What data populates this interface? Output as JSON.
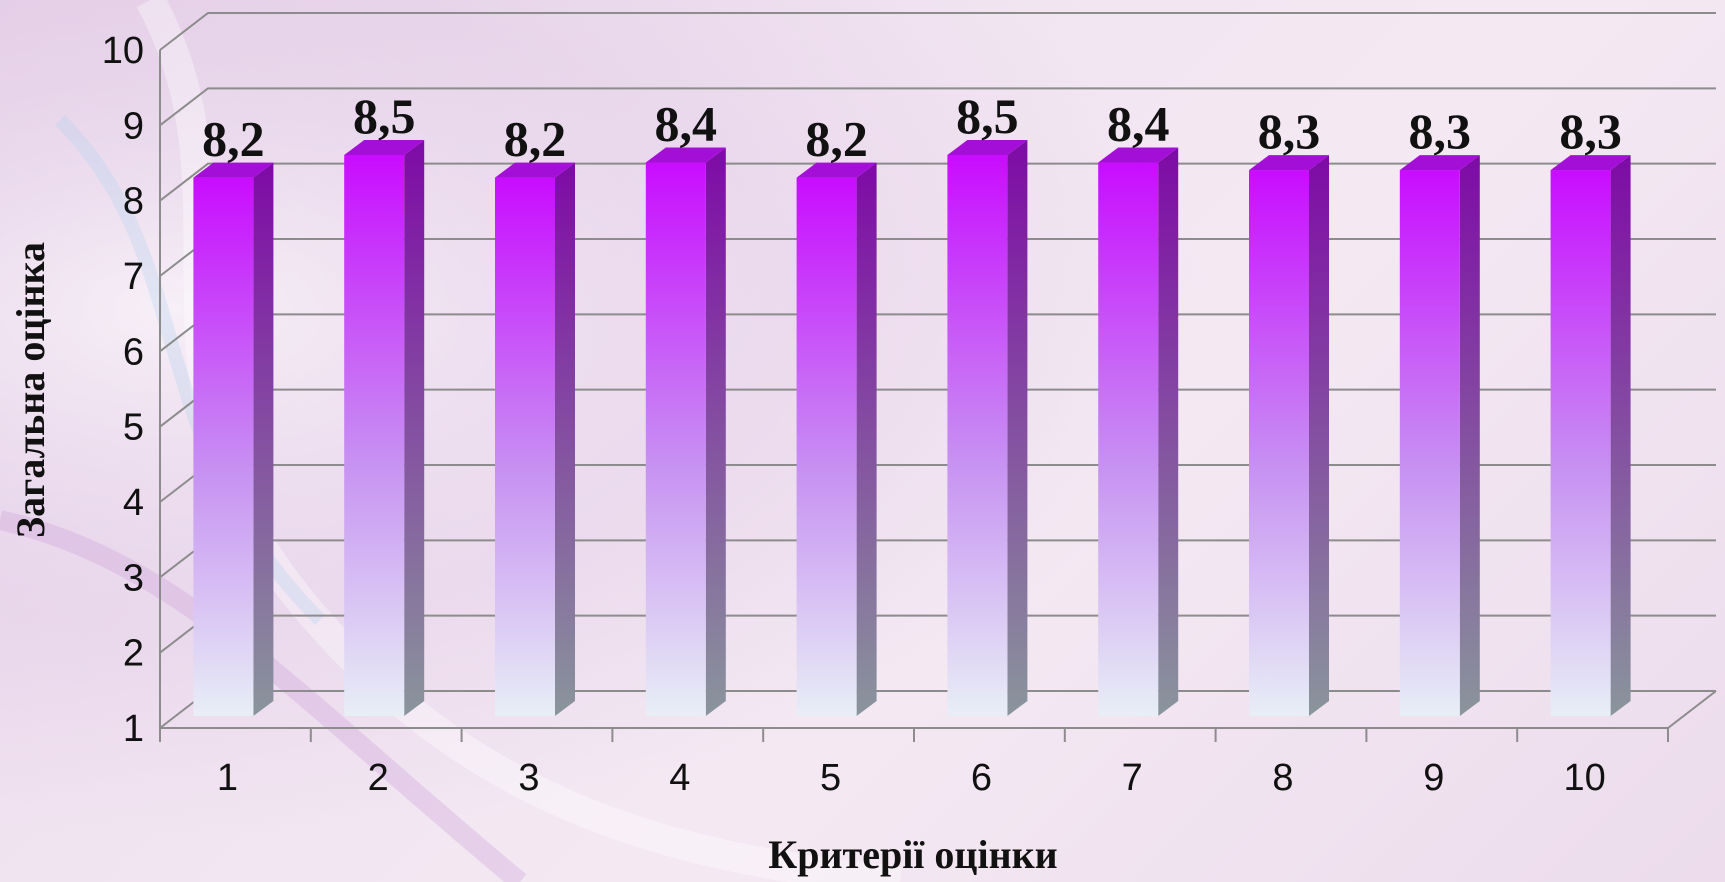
{
  "chart_data": {
    "type": "bar",
    "style": "3d-column",
    "categories": [
      "1",
      "2",
      "3",
      "4",
      "5",
      "6",
      "7",
      "8",
      "9",
      "10"
    ],
    "values": [
      8.2,
      8.5,
      8.2,
      8.4,
      8.2,
      8.5,
      8.4,
      8.3,
      8.3,
      8.3
    ],
    "data_labels": [
      "8,2",
      "8,5",
      "8,2",
      "8,4",
      "8,2",
      "8,5",
      "8,4",
      "8,3",
      "8,3",
      "8,3"
    ],
    "y_ticks": [
      "1",
      "2",
      "3",
      "4",
      "5",
      "6",
      "7",
      "8",
      "9",
      "10"
    ],
    "ylim": [
      1,
      10
    ],
    "xlabel": "Критерії оцінки",
    "ylabel": "Загальна оцінка",
    "grid": true,
    "legend": "none",
    "colors": {
      "bar_top": "#c90cff",
      "bar_mid": "#c792f2",
      "bar_bottom": "#e8eef6",
      "side_top": "#7e0aa6",
      "side_bottom": "#8a959c",
      "cap": "#a40fd8",
      "gridline": "#8c8c8c"
    }
  },
  "background_colors": [
    "#e9d6ea",
    "#f4e9f3"
  ]
}
